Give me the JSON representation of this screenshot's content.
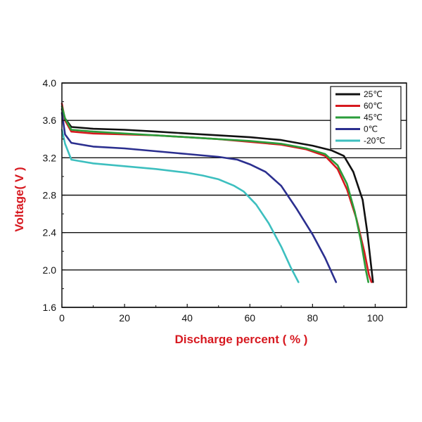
{
  "chart_data": {
    "type": "line",
    "title": "",
    "xlabel": "Discharge percent ( % )",
    "ylabel": "Voltage( V )",
    "xlim": [
      0,
      110
    ],
    "ylim": [
      1.6,
      4.0
    ],
    "x_ticks": [
      "0",
      "20",
      "40",
      "60",
      "80",
      "100"
    ],
    "x_tick_values": [
      0,
      20,
      40,
      60,
      80,
      100
    ],
    "y_ticks": [
      "1.6",
      "2.0",
      "2.4",
      "2.8",
      "3.2",
      "3.6",
      "4.0"
    ],
    "y_tick_values": [
      1.6,
      2.0,
      2.4,
      2.8,
      3.2,
      3.6,
      4.0
    ],
    "grid": "horizontal",
    "legend_position": "top-right",
    "series": [
      {
        "name": "25℃",
        "color": "#111111",
        "points": [
          [
            0,
            3.72
          ],
          [
            1,
            3.62
          ],
          [
            3,
            3.53
          ],
          [
            10,
            3.51
          ],
          [
            20,
            3.5
          ],
          [
            30,
            3.48
          ],
          [
            40,
            3.46
          ],
          [
            50,
            3.44
          ],
          [
            60,
            3.42
          ],
          [
            70,
            3.39
          ],
          [
            80,
            3.33
          ],
          [
            86,
            3.28
          ],
          [
            90,
            3.22
          ],
          [
            93,
            3.05
          ],
          [
            96,
            2.75
          ],
          [
            97.5,
            2.4
          ],
          [
            98.5,
            2.1
          ],
          [
            99.3,
            1.87
          ]
        ]
      },
      {
        "name": "60℃",
        "color": "#d7191f",
        "points": [
          [
            0,
            3.78
          ],
          [
            1,
            3.6
          ],
          [
            3,
            3.48
          ],
          [
            10,
            3.46
          ],
          [
            20,
            3.45
          ],
          [
            30,
            3.44
          ],
          [
            40,
            3.42
          ],
          [
            50,
            3.4
          ],
          [
            60,
            3.37
          ],
          [
            70,
            3.34
          ],
          [
            78,
            3.29
          ],
          [
            84,
            3.22
          ],
          [
            88,
            3.08
          ],
          [
            91,
            2.86
          ],
          [
            94,
            2.55
          ],
          [
            96.5,
            2.2
          ],
          [
            98,
            1.95
          ],
          [
            98.8,
            1.87
          ]
        ]
      },
      {
        "name": "45℃",
        "color": "#2a9d3a",
        "points": [
          [
            0,
            3.75
          ],
          [
            1,
            3.62
          ],
          [
            3,
            3.5
          ],
          [
            10,
            3.48
          ],
          [
            20,
            3.46
          ],
          [
            30,
            3.44
          ],
          [
            40,
            3.42
          ],
          [
            50,
            3.4
          ],
          [
            60,
            3.38
          ],
          [
            70,
            3.35
          ],
          [
            78,
            3.3
          ],
          [
            84,
            3.24
          ],
          [
            88,
            3.12
          ],
          [
            91,
            2.92
          ],
          [
            93.5,
            2.62
          ],
          [
            95.5,
            2.3
          ],
          [
            97,
            2.0
          ],
          [
            97.8,
            1.87
          ]
        ]
      },
      {
        "name": "0℃",
        "color": "#2b2f8f",
        "points": [
          [
            0,
            3.68
          ],
          [
            1,
            3.45
          ],
          [
            3,
            3.36
          ],
          [
            10,
            3.32
          ],
          [
            20,
            3.3
          ],
          [
            30,
            3.27
          ],
          [
            40,
            3.24
          ],
          [
            50,
            3.21
          ],
          [
            56,
            3.18
          ],
          [
            60,
            3.13
          ],
          [
            65,
            3.05
          ],
          [
            70,
            2.9
          ],
          [
            75,
            2.65
          ],
          [
            80,
            2.38
          ],
          [
            84,
            2.13
          ],
          [
            87.5,
            1.87
          ]
        ]
      },
      {
        "name": "-20℃",
        "color": "#3dbfbf",
        "points": [
          [
            0,
            3.5
          ],
          [
            1,
            3.35
          ],
          [
            3,
            3.18
          ],
          [
            10,
            3.14
          ],
          [
            20,
            3.11
          ],
          [
            30,
            3.08
          ],
          [
            40,
            3.04
          ],
          [
            45,
            3.01
          ],
          [
            50,
            2.97
          ],
          [
            55,
            2.9
          ],
          [
            58,
            2.84
          ],
          [
            62,
            2.7
          ],
          [
            66,
            2.5
          ],
          [
            70,
            2.25
          ],
          [
            73,
            2.03
          ],
          [
            75.5,
            1.87
          ]
        ]
      }
    ]
  }
}
